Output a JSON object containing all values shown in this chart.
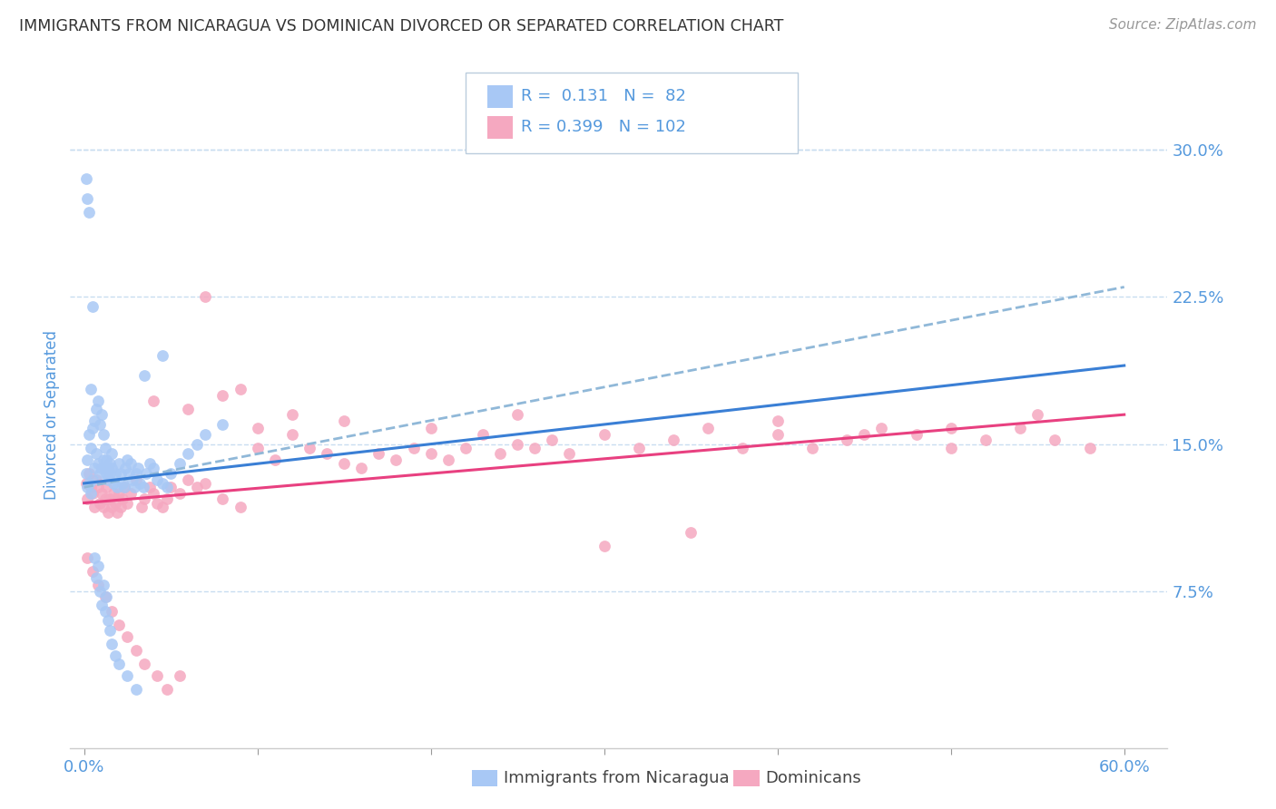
{
  "title": "IMMIGRANTS FROM NICARAGUA VS DOMINICAN DIVORCED OR SEPARATED CORRELATION CHART",
  "source": "Source: ZipAtlas.com",
  "ylabel": "Divorced or Separated",
  "legend_label1": "Immigrants from Nicaragua",
  "legend_label2": "Dominicans",
  "r1": 0.131,
  "n1": 82,
  "r2": 0.399,
  "n2": 102,
  "xlim": [
    -0.008,
    0.625
  ],
  "ylim": [
    -0.005,
    0.335
  ],
  "yticks": [
    0.0,
    0.075,
    0.15,
    0.225,
    0.3
  ],
  "ytick_labels": [
    "",
    "7.5%",
    "15.0%",
    "22.5%",
    "30.0%"
  ],
  "xtick_positions": [
    0.0,
    0.1,
    0.2,
    0.3,
    0.4,
    0.5,
    0.6
  ],
  "xtick_labels_show": [
    "0.0%",
    "",
    "",
    "",
    "",
    "",
    "60.0%"
  ],
  "scatter1_color": "#a8c8f5",
  "scatter2_color": "#f5a8c0",
  "line1_color": "#3a7fd5",
  "line2_color": "#e84080",
  "dashed_line_color": "#90b8d8",
  "title_color": "#333333",
  "source_color": "#999999",
  "axis_color": "#5599dd",
  "grid_color": "#c8ddf0",
  "tick_color": "#999999",
  "background_color": "#ffffff",
  "figsize": [
    14.06,
    8.92
  ],
  "blue_line_y0": 0.13,
  "blue_line_y1": 0.19,
  "pink_line_y0": 0.12,
  "pink_line_y1": 0.165,
  "dashed_line_y0": 0.128,
  "dashed_line_y1": 0.23,
  "scatter1_x": [
    0.001,
    0.002,
    0.002,
    0.003,
    0.003,
    0.004,
    0.004,
    0.005,
    0.005,
    0.006,
    0.006,
    0.007,
    0.007,
    0.008,
    0.008,
    0.009,
    0.009,
    0.01,
    0.01,
    0.011,
    0.011,
    0.012,
    0.012,
    0.013,
    0.013,
    0.014,
    0.014,
    0.015,
    0.015,
    0.016,
    0.016,
    0.017,
    0.018,
    0.019,
    0.02,
    0.021,
    0.022,
    0.023,
    0.024,
    0.025,
    0.026,
    0.027,
    0.028,
    0.029,
    0.03,
    0.031,
    0.032,
    0.034,
    0.036,
    0.038,
    0.04,
    0.042,
    0.045,
    0.048,
    0.05,
    0.055,
    0.06,
    0.065,
    0.07,
    0.08,
    0.001,
    0.002,
    0.003,
    0.004,
    0.005,
    0.006,
    0.007,
    0.008,
    0.009,
    0.01,
    0.011,
    0.012,
    0.013,
    0.014,
    0.015,
    0.016,
    0.018,
    0.02,
    0.025,
    0.03,
    0.035,
    0.045
  ],
  "scatter1_y": [
    0.135,
    0.128,
    0.142,
    0.13,
    0.155,
    0.125,
    0.148,
    0.132,
    0.158,
    0.138,
    0.162,
    0.145,
    0.168,
    0.14,
    0.172,
    0.135,
    0.16,
    0.138,
    0.165,
    0.142,
    0.155,
    0.138,
    0.148,
    0.135,
    0.142,
    0.132,
    0.138,
    0.135,
    0.14,
    0.138,
    0.145,
    0.13,
    0.135,
    0.128,
    0.14,
    0.135,
    0.13,
    0.128,
    0.138,
    0.142,
    0.135,
    0.14,
    0.132,
    0.128,
    0.135,
    0.138,
    0.13,
    0.128,
    0.135,
    0.14,
    0.138,
    0.132,
    0.13,
    0.128,
    0.135,
    0.14,
    0.145,
    0.15,
    0.155,
    0.16,
    0.285,
    0.275,
    0.268,
    0.178,
    0.22,
    0.092,
    0.082,
    0.088,
    0.075,
    0.068,
    0.078,
    0.065,
    0.072,
    0.06,
    0.055,
    0.048,
    0.042,
    0.038,
    0.032,
    0.025,
    0.185,
    0.195
  ],
  "scatter2_x": [
    0.001,
    0.002,
    0.003,
    0.004,
    0.005,
    0.006,
    0.007,
    0.008,
    0.009,
    0.01,
    0.011,
    0.012,
    0.013,
    0.014,
    0.015,
    0.016,
    0.017,
    0.018,
    0.019,
    0.02,
    0.021,
    0.022,
    0.023,
    0.025,
    0.027,
    0.03,
    0.033,
    0.035,
    0.038,
    0.04,
    0.042,
    0.045,
    0.048,
    0.05,
    0.055,
    0.06,
    0.065,
    0.07,
    0.08,
    0.09,
    0.1,
    0.11,
    0.12,
    0.13,
    0.14,
    0.15,
    0.16,
    0.17,
    0.18,
    0.19,
    0.2,
    0.21,
    0.22,
    0.23,
    0.24,
    0.25,
    0.26,
    0.27,
    0.28,
    0.3,
    0.32,
    0.34,
    0.36,
    0.38,
    0.4,
    0.42,
    0.44,
    0.46,
    0.48,
    0.5,
    0.52,
    0.54,
    0.56,
    0.58,
    0.002,
    0.005,
    0.008,
    0.012,
    0.016,
    0.02,
    0.025,
    0.03,
    0.035,
    0.042,
    0.048,
    0.055,
    0.07,
    0.09,
    0.12,
    0.15,
    0.2,
    0.25,
    0.3,
    0.35,
    0.4,
    0.45,
    0.5,
    0.55,
    0.04,
    0.06,
    0.08,
    0.1
  ],
  "scatter2_y": [
    0.13,
    0.122,
    0.135,
    0.128,
    0.125,
    0.118,
    0.132,
    0.128,
    0.12,
    0.125,
    0.118,
    0.122,
    0.128,
    0.115,
    0.122,
    0.118,
    0.125,
    0.12,
    0.115,
    0.125,
    0.118,
    0.122,
    0.128,
    0.12,
    0.125,
    0.132,
    0.118,
    0.122,
    0.128,
    0.125,
    0.12,
    0.118,
    0.122,
    0.128,
    0.125,
    0.132,
    0.128,
    0.13,
    0.122,
    0.118,
    0.148,
    0.142,
    0.155,
    0.148,
    0.145,
    0.14,
    0.138,
    0.145,
    0.142,
    0.148,
    0.145,
    0.142,
    0.148,
    0.155,
    0.145,
    0.15,
    0.148,
    0.152,
    0.145,
    0.155,
    0.148,
    0.152,
    0.158,
    0.148,
    0.155,
    0.148,
    0.152,
    0.158,
    0.155,
    0.148,
    0.152,
    0.158,
    0.152,
    0.148,
    0.092,
    0.085,
    0.078,
    0.072,
    0.065,
    0.058,
    0.052,
    0.045,
    0.038,
    0.032,
    0.025,
    0.032,
    0.225,
    0.178,
    0.165,
    0.162,
    0.158,
    0.165,
    0.098,
    0.105,
    0.162,
    0.155,
    0.158,
    0.165,
    0.172,
    0.168,
    0.175,
    0.158
  ]
}
